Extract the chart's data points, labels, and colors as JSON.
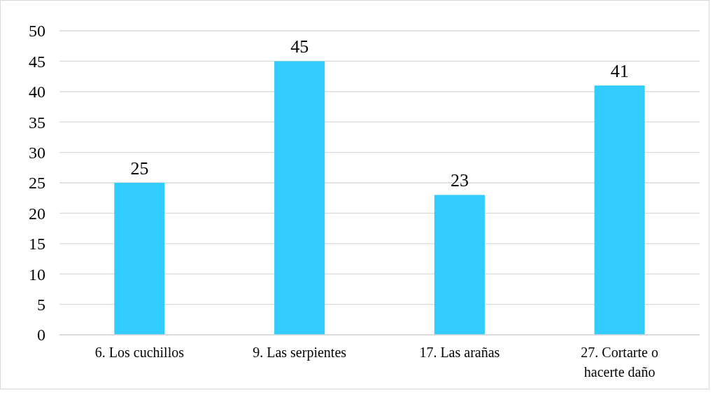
{
  "chart_data": {
    "type": "bar",
    "categories": [
      "6. Los cuchillos",
      "9. Las serpientes",
      "17. Las arañas",
      "27. Cortarte o hacerte daño"
    ],
    "values": [
      25,
      45,
      23,
      41
    ],
    "color": "#33ccff",
    "ylim": [
      0,
      50
    ],
    "yticks": [
      0,
      5,
      10,
      15,
      20,
      25,
      30,
      35,
      40,
      45,
      50
    ],
    "grid": "y",
    "data_labels": true
  }
}
